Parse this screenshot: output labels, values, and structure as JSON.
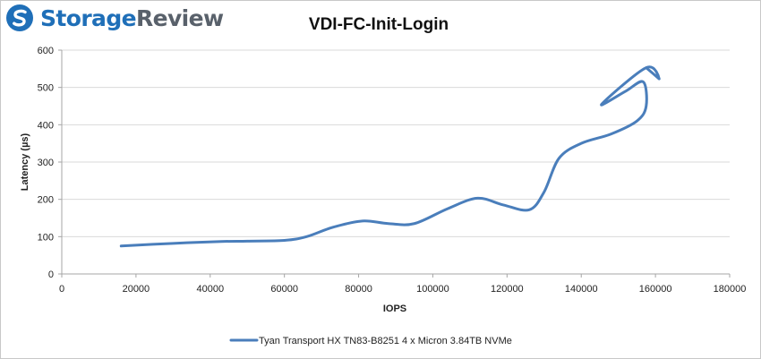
{
  "logo": {
    "word_a": "Storage",
    "word_b": "Review",
    "icon": "storagereview-logo-icon",
    "color_a": "#1f6fb8",
    "color_b": "#59616b"
  },
  "chart_data": {
    "type": "line",
    "title": "VDI-FC-Init-Login",
    "xlabel": "IOPS",
    "ylabel": "Latency (µs)",
    "xlim": [
      0,
      180000
    ],
    "ylim": [
      0,
      600
    ],
    "xticks": [
      0,
      20000,
      40000,
      60000,
      80000,
      100000,
      120000,
      140000,
      160000,
      180000
    ],
    "yticks": [
      0,
      100,
      200,
      300,
      400,
      500,
      600
    ],
    "grid": "horizontal",
    "legend_position": "bottom",
    "series": [
      {
        "name": "Tyan Transport HX TN83-B8251 4 x Micron 3.84TB NVMe",
        "color": "#4a7ebb",
        "x": [
          16000,
          30000,
          43000,
          50000,
          60000,
          66000,
          73000,
          81000,
          88000,
          95000,
          104000,
          112000,
          119000,
          126000,
          130000,
          134000,
          140000,
          148000,
          155000,
          157500,
          156700,
          152000,
          145500,
          157500,
          161000,
          157500
        ],
        "y": [
          75,
          82,
          87,
          88,
          90,
          100,
          125,
          142,
          135,
          135,
          175,
          203,
          185,
          172,
          220,
          310,
          350,
          375,
          410,
          450,
          515,
          490,
          455,
          553,
          523,
          553
        ]
      }
    ]
  }
}
